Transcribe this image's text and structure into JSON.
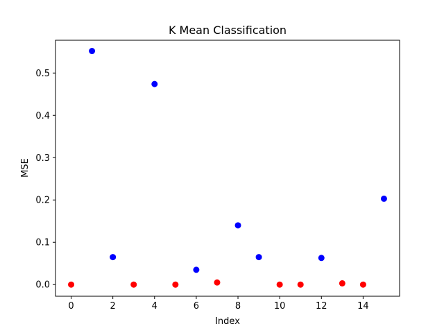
{
  "chart_data": {
    "type": "scatter",
    "title": "K Mean Classification",
    "xlabel": "Index",
    "ylabel": "MSE",
    "xlim": [
      -0.75,
      15.75
    ],
    "ylim": [
      -0.0275,
      0.5775
    ],
    "xticks": [
      0,
      2,
      4,
      6,
      8,
      10,
      12,
      14
    ],
    "xtick_labels": [
      "0",
      "2",
      "4",
      "6",
      "8",
      "10",
      "12",
      "14"
    ],
    "yticks": [
      0.0,
      0.1,
      0.2,
      0.3,
      0.4,
      0.5
    ],
    "ytick_labels": [
      "0.0",
      "0.1",
      "0.2",
      "0.3",
      "0.4",
      "0.5"
    ],
    "grid": false,
    "points": [
      {
        "x": 0,
        "y": 0.0,
        "color": "#ff0000"
      },
      {
        "x": 1,
        "y": 0.552,
        "color": "#0000ff"
      },
      {
        "x": 2,
        "y": 0.065,
        "color": "#0000ff"
      },
      {
        "x": 3,
        "y": 0.0,
        "color": "#ff0000"
      },
      {
        "x": 4,
        "y": 0.474,
        "color": "#0000ff"
      },
      {
        "x": 5,
        "y": 0.0,
        "color": "#ff0000"
      },
      {
        "x": 6,
        "y": 0.035,
        "color": "#0000ff"
      },
      {
        "x": 7,
        "y": 0.005,
        "color": "#ff0000"
      },
      {
        "x": 8,
        "y": 0.14,
        "color": "#0000ff"
      },
      {
        "x": 9,
        "y": 0.065,
        "color": "#0000ff"
      },
      {
        "x": 10,
        "y": 0.0,
        "color": "#ff0000"
      },
      {
        "x": 11,
        "y": 0.0,
        "color": "#ff0000"
      },
      {
        "x": 12,
        "y": 0.063,
        "color": "#0000ff"
      },
      {
        "x": 13,
        "y": 0.003,
        "color": "#ff0000"
      },
      {
        "x": 14,
        "y": 0.0,
        "color": "#ff0000"
      },
      {
        "x": 15,
        "y": 0.203,
        "color": "#0000ff"
      }
    ]
  }
}
